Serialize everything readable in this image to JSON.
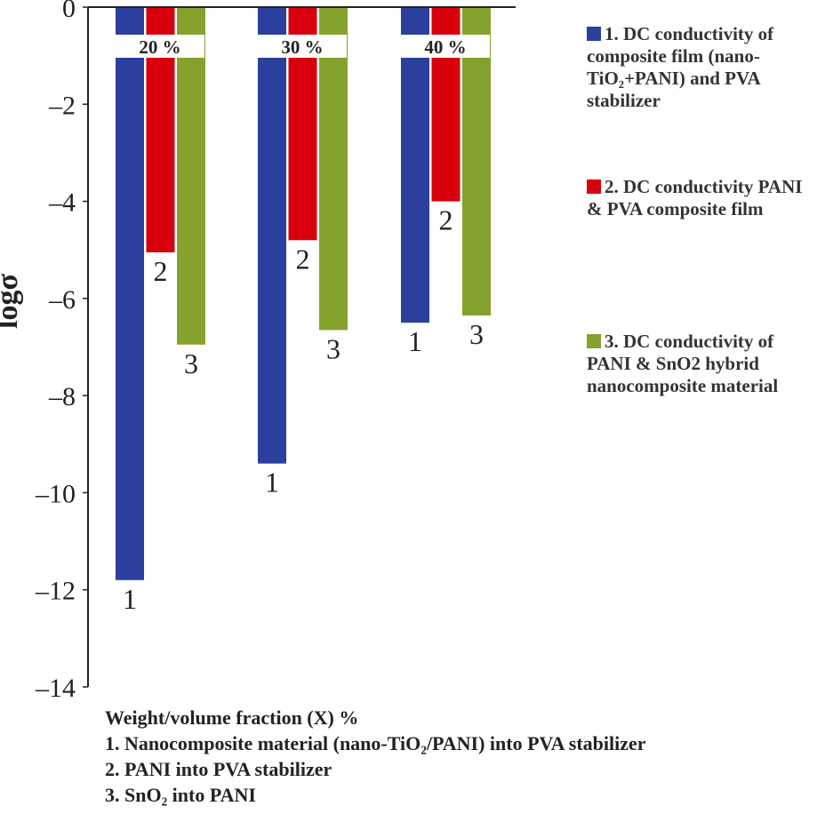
{
  "chart_data": {
    "type": "bar",
    "title": "",
    "xlabel": "Weight/volume fraction (X) %",
    "ylabel": "logσ",
    "ylim": [
      -14,
      0
    ],
    "yticks": [
      "0",
      "–2",
      "–4",
      "–6",
      "–8",
      "–10",
      "–12",
      "–14"
    ],
    "ytick_values": [
      0,
      -2,
      -4,
      -6,
      -8,
      -10,
      -12,
      -14
    ],
    "categories": [
      "20 %",
      "30 %",
      "40 %"
    ],
    "series": [
      {
        "name": "1",
        "color": "#2b3f9e",
        "values": [
          -11.8,
          -9.4,
          -6.5
        ]
      },
      {
        "name": "2",
        "color": "#d9000d",
        "values": [
          -5.05,
          -4.8,
          -4.0
        ]
      },
      {
        "name": "3",
        "color": "#84a22c",
        "values": [
          -6.95,
          -6.65,
          -6.35
        ]
      }
    ],
    "legend": {
      "placement": "right",
      "entries": [
        {
          "label": "1. DC conductivity of composite film (nano-TiO₂+PANI) and PVA stabilizer",
          "color": "#2b3f9e"
        },
        {
          "label": "2. DC conductivity PANI & PVA composite film",
          "color": "#d9000d"
        },
        {
          "label": "3. DC conductivity of PANI & SnO2 hybrid nanocomposite material",
          "color": "#84a22c"
        }
      ]
    },
    "grid": false,
    "notes": [
      "1. Nanocomposite material (nano-TiO₂/PANI) into PVA stabilizer",
      "2. PANI into PVA stabilizer",
      "3. SnO₂ into PANI"
    ]
  }
}
